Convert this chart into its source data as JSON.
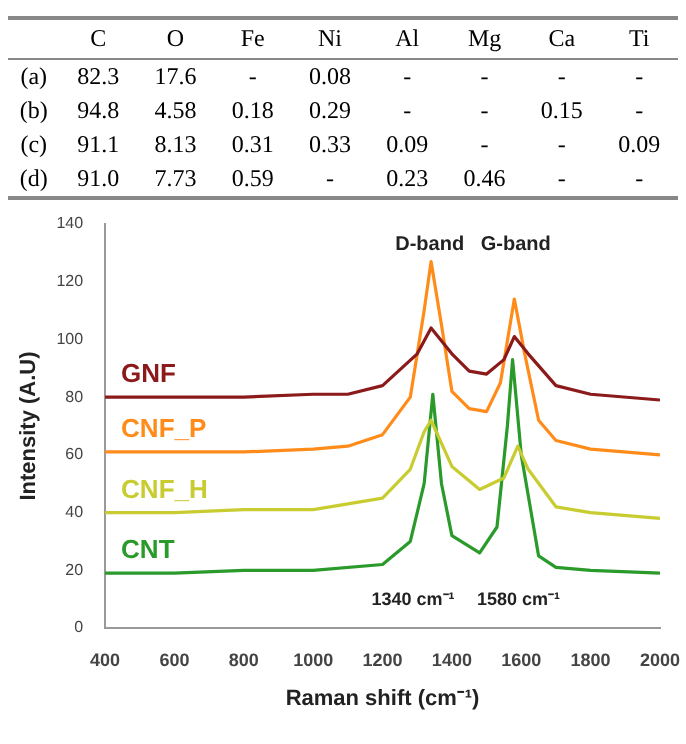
{
  "chart_data": [
    {
      "type": "other",
      "categories": [
        "C",
        "O",
        "Fe",
        "Ni",
        "Al",
        "Mg",
        "Ca",
        "Ti"
      ],
      "y_categories": [
        "(a)",
        "(b)",
        "(c)",
        "(d)"
      ],
      "cell_labels": [
        [
          "82.3",
          "17.6",
          "-",
          "0.08",
          "-",
          "-",
          "-",
          "-"
        ],
        [
          "94.8",
          "4.58",
          "0.18",
          "0.29",
          "-",
          "-",
          "0.15",
          "-"
        ],
        [
          "91.1",
          "8.13",
          "0.31",
          "0.33",
          "0.09",
          "-",
          "-",
          "0.09"
        ],
        [
          "91.0",
          "7.73",
          "0.59",
          "-",
          "0.23",
          "0.46",
          "-",
          "-"
        ]
      ]
    },
    {
      "type": "line",
      "xlabel": "Raman shift (cm⁻¹)",
      "ylabel": "Intensity (A.U)",
      "xlim": [
        400,
        2000
      ],
      "ylim": [
        0,
        140
      ],
      "xticks": [
        400,
        600,
        800,
        1000,
        1200,
        1400,
        1600,
        1800,
        2000
      ],
      "yticks": [
        0,
        20,
        40,
        60,
        80,
        100,
        120,
        140
      ],
      "grid": false,
      "legend": false,
      "marker": "none",
      "annotations": [
        "D-band",
        "G-band",
        "1340 cm⁻¹",
        "1580 cm⁻¹"
      ],
      "series": [
        {
          "name": "GNF",
          "color": "#8b1a1a",
          "x": [
            400,
            600,
            800,
            1000,
            1100,
            1200,
            1300,
            1340,
            1400,
            1450,
            1500,
            1550,
            1580,
            1620,
            1700,
            1800,
            2000
          ],
          "values": [
            80,
            80,
            80,
            81,
            81,
            84,
            95,
            104,
            95,
            89,
            88,
            93,
            101,
            95,
            84,
            81,
            79
          ]
        },
        {
          "name": "CNF_P",
          "color": "#ff8c1a",
          "x": [
            400,
            600,
            800,
            1000,
            1100,
            1200,
            1280,
            1320,
            1340,
            1370,
            1400,
            1450,
            1500,
            1540,
            1580,
            1610,
            1650,
            1700,
            1800,
            2000
          ],
          "values": [
            61,
            61,
            61,
            62,
            63,
            67,
            80,
            110,
            127,
            105,
            82,
            76,
            75,
            85,
            114,
            95,
            72,
            65,
            62,
            60
          ]
        },
        {
          "name": "CNF_H",
          "color": "#c8cc30",
          "x": [
            400,
            600,
            800,
            1000,
            1200,
            1280,
            1320,
            1340,
            1400,
            1480,
            1550,
            1590,
            1620,
            1700,
            1800,
            2000
          ],
          "values": [
            40,
            40,
            41,
            41,
            45,
            55,
            68,
            72,
            56,
            48,
            52,
            63,
            55,
            42,
            40,
            38
          ]
        },
        {
          "name": "CNT",
          "color": "#2a9a2a",
          "x": [
            400,
            600,
            800,
            1000,
            1200,
            1280,
            1320,
            1345,
            1370,
            1400,
            1480,
            1530,
            1560,
            1575,
            1600,
            1650,
            1700,
            1800,
            2000
          ],
          "values": [
            19,
            19,
            20,
            20,
            22,
            30,
            50,
            81,
            50,
            32,
            26,
            35,
            70,
            93,
            60,
            25,
            21,
            20,
            19
          ]
        }
      ]
    }
  ]
}
